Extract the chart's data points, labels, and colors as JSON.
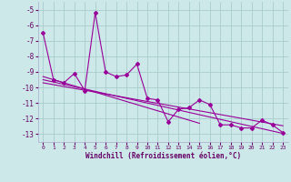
{
  "xlabel": "Windchill (Refroidissement éolien,°C)",
  "bg_color": "#cce8e8",
  "line_color": "#990099",
  "grid_color": "#aacccc",
  "grid_color2": "#b8d8d8",
  "x_data": [
    0,
    1,
    2,
    3,
    4,
    5,
    6,
    7,
    8,
    9,
    10,
    11,
    12,
    13,
    14,
    15,
    16,
    17,
    18,
    19,
    20,
    21,
    22,
    23
  ],
  "y_main": [
    -6.5,
    -9.5,
    -9.7,
    -9.1,
    -10.2,
    -5.2,
    -9.0,
    -9.3,
    -9.2,
    -8.5,
    -10.7,
    -10.8,
    -12.2,
    -11.4,
    -11.3,
    -10.8,
    -11.1,
    -12.4,
    -12.4,
    -12.6,
    -12.6,
    -12.1,
    -12.4,
    -12.9
  ],
  "y_reg1": [
    -9.7,
    -9.82,
    -9.94,
    -10.06,
    -10.18,
    -10.3,
    -10.42,
    -10.54,
    -10.66,
    -10.78,
    -10.9,
    -11.02,
    -11.14,
    -11.26,
    -11.38,
    -11.5,
    -11.62,
    -11.74,
    -11.86,
    -11.98,
    -12.1,
    -12.22,
    -12.34,
    -12.46
  ],
  "y_reg2": [
    -9.5,
    -9.65,
    -9.8,
    -9.95,
    -10.1,
    -10.25,
    -10.4,
    -10.55,
    -10.7,
    -10.85,
    -11.0,
    -11.15,
    -11.3,
    -11.45,
    -11.6,
    -11.75,
    -11.9,
    -12.05,
    -12.2,
    -12.35,
    -12.5,
    -12.65,
    -12.8,
    -12.95
  ],
  "y_reg3": [
    -9.3,
    -9.5,
    -9.7,
    -9.9,
    -10.1,
    -10.3,
    -10.5,
    -10.7,
    -10.9,
    -11.1,
    -11.3,
    -11.5,
    -11.7,
    -11.9,
    -12.1,
    -12.3,
    null,
    null,
    null,
    null,
    null,
    null,
    null,
    null
  ],
  "ylim": [
    -13.5,
    -4.5
  ],
  "xlim": [
    -0.5,
    23.5
  ],
  "yticks": [
    -13,
    -12,
    -11,
    -10,
    -9,
    -8,
    -7,
    -6,
    -5
  ],
  "xticks": [
    0,
    1,
    2,
    3,
    4,
    5,
    6,
    7,
    8,
    9,
    10,
    11,
    12,
    13,
    14,
    15,
    16,
    17,
    18,
    19,
    20,
    21,
    22,
    23
  ]
}
